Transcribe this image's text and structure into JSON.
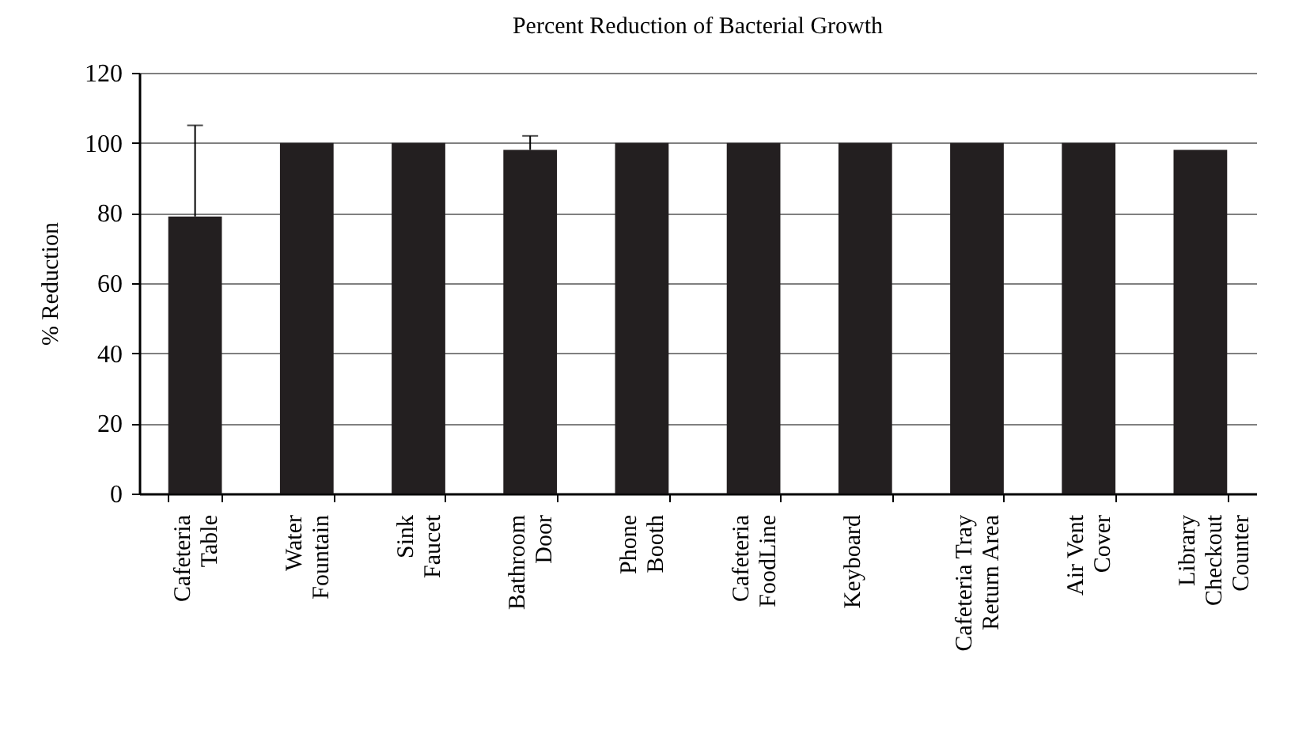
{
  "chart_data": {
    "type": "bar",
    "title": "Percent Reduction of Bacterial Growth",
    "ylabel": "% Reduction",
    "categories": [
      "Cafeteria\nTable",
      "Water\nFountain",
      "Sink\nFaucet",
      "Bathroom\nDoor",
      "Phone\nBooth",
      "Cafeteria\nFoodLine",
      "Keyboard",
      "Cafeteria Tray\nReturn Area",
      "Air Vent\nCover",
      "Library\nCheckout\nCounter"
    ],
    "values": [
      79,
      100,
      100,
      98,
      100,
      100,
      100,
      100,
      100,
      98
    ],
    "errors": [
      [
        79,
        105
      ],
      null,
      null,
      [
        98,
        102
      ],
      null,
      null,
      null,
      null,
      null,
      null
    ],
    "color": "#231f20",
    "ylim": [
      0,
      120
    ],
    "yticks": [
      0,
      20,
      40,
      60,
      80,
      100,
      120
    ],
    "grid": "y"
  }
}
